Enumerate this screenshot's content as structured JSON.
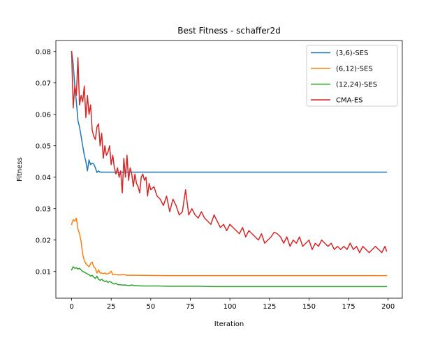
{
  "chart_data": {
    "type": "line",
    "title": "Best Fitness - schaffer2d",
    "xlabel": "Iteration",
    "ylabel": "Fitness",
    "xlim": [
      -9.95,
      208.95
    ],
    "ylim": [
      0.0015,
      0.0835
    ],
    "xticks": [
      0,
      25,
      50,
      75,
      100,
      125,
      150,
      175,
      200
    ],
    "yticks": [
      0.01,
      0.02,
      0.03,
      0.04,
      0.05,
      0.06,
      0.07,
      0.08
    ],
    "ytick_labels": [
      "0.01",
      "0.02",
      "0.03",
      "0.04",
      "0.05",
      "0.06",
      "0.07",
      "0.08"
    ],
    "grid": false,
    "legend_position": "top-right",
    "series": [
      {
        "name": "(3,6)-SES",
        "color": "#1f77b4",
        "x": [
          0,
          1,
          2,
          3,
          4,
          5,
          6,
          7,
          8,
          9,
          10,
          11,
          12,
          13,
          14,
          15,
          16,
          17,
          18,
          20,
          199
        ],
        "y": [
          0.08,
          0.076,
          0.069,
          0.064,
          0.058,
          0.056,
          0.053,
          0.05,
          0.047,
          0.045,
          0.042,
          0.0455,
          0.044,
          0.0445,
          0.0442,
          0.043,
          0.0415,
          0.042,
          0.0416,
          0.0416,
          0.0416
        ]
      },
      {
        "name": "(6,12)-SES",
        "color": "#ff7f0e",
        "x": [
          0,
          1,
          2,
          3,
          4,
          5,
          6,
          7,
          8,
          9,
          10,
          11,
          12,
          13,
          14,
          15,
          16,
          17,
          18,
          19,
          20,
          21,
          22,
          23,
          24,
          25,
          26,
          28,
          30,
          33,
          35,
          40,
          60,
          100,
          150,
          199
        ],
        "y": [
          0.025,
          0.0265,
          0.026,
          0.027,
          0.0235,
          0.022,
          0.0195,
          0.0155,
          0.0135,
          0.0125,
          0.012,
          0.0115,
          0.0125,
          0.013,
          0.0115,
          0.011,
          0.0095,
          0.0105,
          0.0095,
          0.0095,
          0.0093,
          0.0095,
          0.0092,
          0.0093,
          0.0095,
          0.0101,
          0.009,
          0.009,
          0.0089,
          0.009,
          0.0088,
          0.0088,
          0.0087,
          0.0087,
          0.0087,
          0.0087
        ]
      },
      {
        "name": "(12,24)-SES",
        "color": "#2ca02c",
        "x": [
          0,
          1,
          2,
          3,
          4,
          5,
          6,
          7,
          8,
          9,
          10,
          11,
          12,
          13,
          14,
          15,
          16,
          17,
          18,
          19,
          20,
          21,
          22,
          23,
          24,
          25,
          26,
          27,
          28,
          29,
          30,
          32,
          34,
          36,
          38,
          40,
          45,
          50,
          55,
          60,
          65,
          70,
          80,
          90,
          100,
          120,
          150,
          199
        ],
        "y": [
          0.0105,
          0.0115,
          0.011,
          0.0112,
          0.0108,
          0.011,
          0.0105,
          0.01,
          0.0098,
          0.0095,
          0.0092,
          0.009,
          0.0085,
          0.0088,
          0.0082,
          0.0078,
          0.0085,
          0.0075,
          0.0072,
          0.0075,
          0.0071,
          0.0068,
          0.007,
          0.0065,
          0.0068,
          0.0066,
          0.0062,
          0.006,
          0.0063,
          0.0058,
          0.0058,
          0.0057,
          0.0057,
          0.0055,
          0.0057,
          0.0055,
          0.0054,
          0.0054,
          0.0054,
          0.0053,
          0.0053,
          0.0053,
          0.0053,
          0.0052,
          0.0052,
          0.0052,
          0.0052,
          0.0052
        ]
      },
      {
        "name": "CMA-ES",
        "color": "#d62728",
        "x": [
          0,
          1,
          2,
          3,
          4,
          5,
          6,
          7,
          8,
          9,
          10,
          11,
          12,
          13,
          14,
          15,
          16,
          17,
          18,
          19,
          20,
          21,
          22,
          23,
          24,
          25,
          26,
          27,
          28,
          29,
          30,
          31,
          32,
          33,
          34,
          35,
          36,
          37,
          38,
          39,
          40,
          41,
          42,
          43,
          44,
          45,
          46,
          47,
          48,
          49,
          50,
          52,
          54,
          56,
          58,
          60,
          62,
          64,
          66,
          68,
          70,
          72,
          74,
          76,
          78,
          80,
          82,
          84,
          86,
          88,
          90,
          92,
          94,
          96,
          98,
          100,
          102,
          104,
          106,
          108,
          110,
          112,
          114,
          116,
          118,
          120,
          122,
          124,
          126,
          128,
          130,
          132,
          134,
          136,
          138,
          140,
          142,
          144,
          146,
          148,
          150,
          152,
          154,
          156,
          158,
          160,
          162,
          164,
          166,
          168,
          170,
          172,
          174,
          176,
          178,
          180,
          182,
          184,
          186,
          188,
          190,
          192,
          194,
          196,
          198,
          199
        ],
        "y": [
          0.08,
          0.062,
          0.069,
          0.066,
          0.078,
          0.063,
          0.066,
          0.064,
          0.069,
          0.059,
          0.066,
          0.06,
          0.063,
          0.055,
          0.053,
          0.052,
          0.056,
          0.057,
          0.05,
          0.054,
          0.046,
          0.05,
          0.047,
          0.048,
          0.05,
          0.044,
          0.047,
          0.043,
          0.041,
          0.043,
          0.04,
          0.042,
          0.035,
          0.046,
          0.04,
          0.047,
          0.039,
          0.043,
          0.041,
          0.037,
          0.041,
          0.038,
          0.037,
          0.035,
          0.04,
          0.041,
          0.039,
          0.04,
          0.034,
          0.038,
          0.036,
          0.037,
          0.034,
          0.033,
          0.031,
          0.034,
          0.029,
          0.033,
          0.031,
          0.028,
          0.029,
          0.036,
          0.028,
          0.03,
          0.028,
          0.027,
          0.029,
          0.027,
          0.026,
          0.025,
          0.028,
          0.026,
          0.024,
          0.025,
          0.023,
          0.025,
          0.024,
          0.023,
          0.022,
          0.024,
          0.021,
          0.023,
          0.022,
          0.021,
          0.02,
          0.022,
          0.019,
          0.02,
          0.021,
          0.0225,
          0.022,
          0.021,
          0.019,
          0.021,
          0.018,
          0.02,
          0.019,
          0.021,
          0.018,
          0.019,
          0.02,
          0.017,
          0.019,
          0.018,
          0.02,
          0.019,
          0.018,
          0.019,
          0.017,
          0.018,
          0.017,
          0.018,
          0.017,
          0.019,
          0.017,
          0.018,
          0.016,
          0.018,
          0.017,
          0.016,
          0.017,
          0.018,
          0.017,
          0.016,
          0.018,
          0.0165
        ]
      }
    ]
  }
}
